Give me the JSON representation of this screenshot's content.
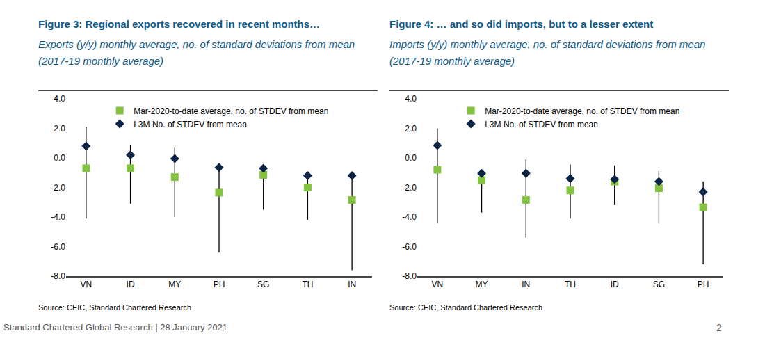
{
  "chart_data": [
    {
      "type": "range_dot",
      "title": "Figure 3: Regional exports recovered in recent months…",
      "subtitle": "Exports (y/y) monthly average, no. of standard deviations from mean (2017-19 monthly average)",
      "source": "Source: CEIC, Standard Chartered Research",
      "categories": [
        "VN",
        "ID",
        "MY",
        "PH",
        "SG",
        "TH",
        "IN"
      ],
      "series": [
        {
          "name": "Mar-2020-to-date average, no. of STDEV from mean",
          "color": "#84c341",
          "marker": "square",
          "values": [
            -0.7,
            -0.7,
            -1.3,
            -2.35,
            -1.15,
            -2.0,
            -2.85
          ]
        },
        {
          "name": "L3M No. of STDEV from mean",
          "color": "#0b2344",
          "marker": "diamond",
          "values": [
            0.8,
            0.2,
            -0.05,
            -0.65,
            -0.7,
            -1.2,
            -1.2
          ]
        }
      ],
      "range_low": [
        -4.1,
        -3.1,
        -4.0,
        -6.4,
        -3.5,
        -4.2,
        -7.6
      ],
      "range_high": [
        2.1,
        0.9,
        0.7,
        -0.65,
        -0.7,
        -1.1,
        -1.2
      ],
      "range_color": "#000000",
      "ylim": [
        -8,
        4
      ],
      "yticks": [
        {
          "value": -8,
          "label": "-8.0"
        },
        {
          "value": -6,
          "label": "-6.0"
        },
        {
          "value": -4,
          "label": "-4.0"
        },
        {
          "value": -2,
          "label": "-2.0"
        },
        {
          "value": 0,
          "label": "0.0"
        },
        {
          "value": 2,
          "label": "2.0"
        },
        {
          "value": 4,
          "label": "4.0"
        }
      ],
      "grid": false,
      "legend": "top"
    },
    {
      "type": "range_dot",
      "title": "Figure 4: … and so did imports, but to a lesser extent",
      "subtitle": "Imports (y/y) monthly average, no. of standard deviations from mean (2017-19 monthly average)",
      "source": "Source: CEIC, Standard Chartered Research",
      "categories": [
        "VN",
        "MY",
        "IN",
        "TH",
        "ID",
        "SG",
        "PH"
      ],
      "series": [
        {
          "name": "Mar-2020-to-date average, no. of STDEV from mean",
          "color": "#84c341",
          "marker": "square",
          "values": [
            -0.8,
            -1.5,
            -2.85,
            -2.2,
            -1.6,
            -2.05,
            -3.35
          ]
        },
        {
          "name": "L3M No. of STDEV from mean",
          "color": "#0b2344",
          "marker": "diamond",
          "values": [
            0.85,
            -1.05,
            -1.05,
            -1.4,
            -1.45,
            -1.6,
            -2.3
          ]
        }
      ],
      "range_low": [
        -4.4,
        -3.7,
        -5.4,
        -4.1,
        -3.2,
        -4.4,
        -7.2
      ],
      "range_high": [
        2.0,
        -1.0,
        -0.1,
        -0.45,
        -0.5,
        -0.9,
        -1.6
      ],
      "range_color": "#000000",
      "ylim": [
        -8,
        4
      ],
      "yticks": [
        {
          "value": -8,
          "label": "-8.0"
        },
        {
          "value": -6,
          "label": "-6.0"
        },
        {
          "value": -4,
          "label": "-4.0"
        },
        {
          "value": -2,
          "label": "-2.0"
        },
        {
          "value": 0,
          "label": "0.0"
        },
        {
          "value": 2,
          "label": "2.0"
        },
        {
          "value": 4,
          "label": "4.0"
        }
      ],
      "grid": false,
      "legend": "top"
    }
  ],
  "page": {
    "footer": "Standard Chartered Global Research | 28 January 2021",
    "page_number": 2
  }
}
